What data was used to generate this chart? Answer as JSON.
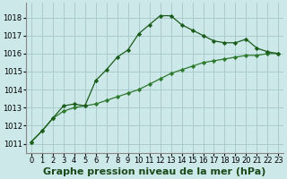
{
  "bg_color": "#cce8e8",
  "grid_color": "#aacccc",
  "line_color1": "#1a5c1a",
  "line_color2": "#2d7a2d",
  "xlim": [
    -0.5,
    23.5
  ],
  "ylim": [
    1010.5,
    1018.8
  ],
  "yticks": [
    1011,
    1012,
    1013,
    1014,
    1015,
    1016,
    1017,
    1018
  ],
  "xtick_labels": [
    "0",
    "1",
    "2",
    "3",
    "4",
    "5",
    "6",
    "7",
    "8",
    "9",
    "10",
    "11",
    "12",
    "13",
    "14",
    "15",
    "16",
    "17",
    "18",
    "19",
    "20",
    "21",
    "22",
    "23"
  ],
  "series1_x": [
    0,
    1,
    2,
    3,
    4,
    5,
    6,
    7,
    8,
    9,
    10,
    11,
    12,
    13,
    14,
    15,
    16,
    17,
    18,
    19,
    20,
    21,
    22,
    23
  ],
  "series1_y": [
    1011.1,
    1011.7,
    1012.4,
    1013.1,
    1013.2,
    1013.1,
    1014.5,
    1015.1,
    1015.8,
    1016.2,
    1017.1,
    1017.6,
    1018.1,
    1018.1,
    1017.6,
    1017.3,
    1017.0,
    1016.7,
    1016.6,
    1016.6,
    1016.8,
    1016.3,
    1016.1,
    1016.0
  ],
  "series2_x": [
    0,
    1,
    2,
    3,
    4,
    5,
    6,
    7,
    8,
    9,
    10,
    11,
    12,
    13,
    14,
    15,
    16,
    17,
    18,
    19,
    20,
    21,
    22,
    23
  ],
  "series2_y": [
    1011.1,
    1011.7,
    1012.4,
    1012.8,
    1013.0,
    1013.1,
    1013.2,
    1013.4,
    1013.6,
    1013.8,
    1014.0,
    1014.3,
    1014.6,
    1014.9,
    1015.1,
    1015.3,
    1015.5,
    1015.6,
    1015.7,
    1015.8,
    1015.9,
    1015.9,
    1016.0,
    1016.0
  ],
  "xlabel": "Graphe pression niveau de la mer (hPa)",
  "xlabel_fontsize": 8,
  "tick_fontsize": 6
}
